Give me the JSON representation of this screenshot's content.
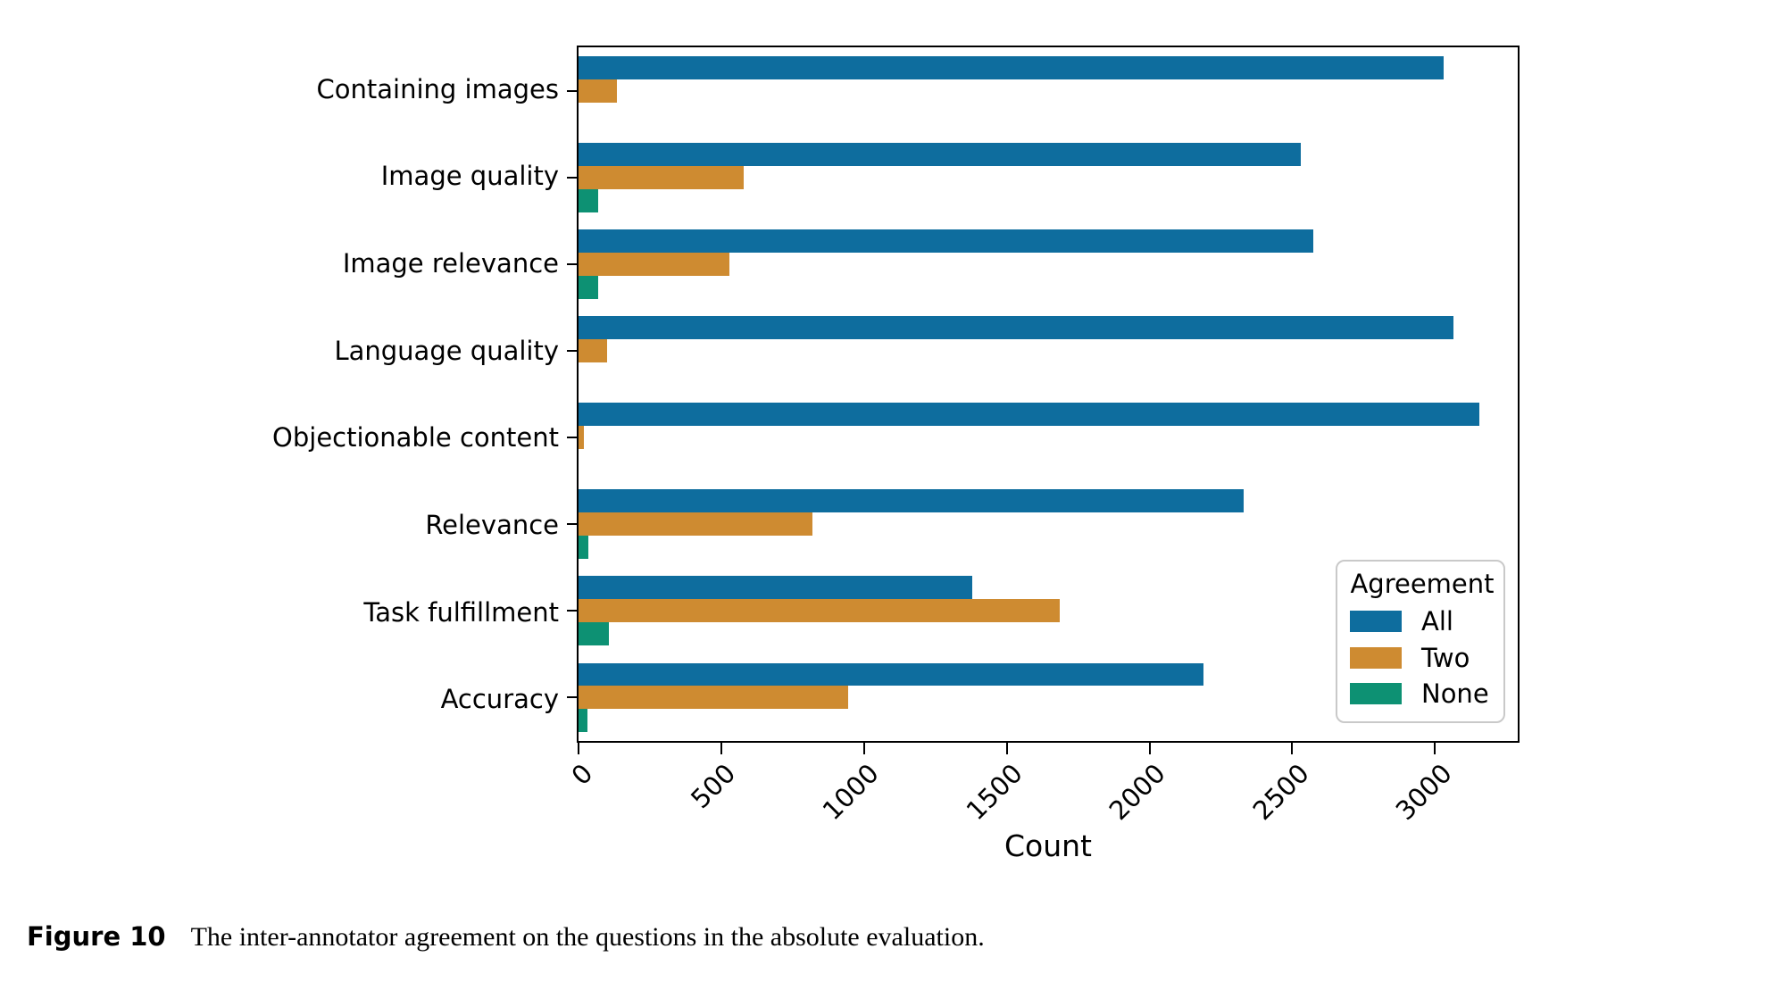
{
  "figure": {
    "caption_label": "Figure 10",
    "caption_text": "The inter-annotator agreement on the questions in the absolute evaluation."
  },
  "chart_data": {
    "type": "bar",
    "orientation": "horizontal",
    "title": "",
    "xlabel": "Count",
    "ylabel": "",
    "xlim": [
      0,
      3290
    ],
    "xticks": [
      0,
      500,
      1000,
      1500,
      2000,
      2500,
      3000
    ],
    "xticklabels": [
      "0",
      "500",
      "1000",
      "1500",
      "2000",
      "2500",
      "3000"
    ],
    "xtick_rotation": 45,
    "grid": false,
    "categories": [
      "Containing images",
      "Image quality",
      "Image relevance",
      "Language quality",
      "Objectionable content",
      "Relevance",
      "Task fulfillment",
      "Accuracy"
    ],
    "legend": {
      "title": "Agreement",
      "position": "lower right",
      "entries": [
        "All",
        "Two",
        "None"
      ]
    },
    "series": [
      {
        "name": "All",
        "color": "#0e6d9e",
        "values": [
          3030,
          2530,
          2575,
          3065,
          3155,
          2330,
          1380,
          2190
        ]
      },
      {
        "name": "Two",
        "color": "#ce8b31",
        "values": [
          135,
          580,
          530,
          100,
          20,
          820,
          1685,
          945
        ]
      },
      {
        "name": "None",
        "color": "#0d9173",
        "values": [
          0,
          70,
          70,
          0,
          0,
          35,
          105,
          30
        ]
      }
    ],
    "colors": {
      "axis": "#000000",
      "legend_border": "#c9c9c9",
      "background": "#ffffff"
    }
  }
}
